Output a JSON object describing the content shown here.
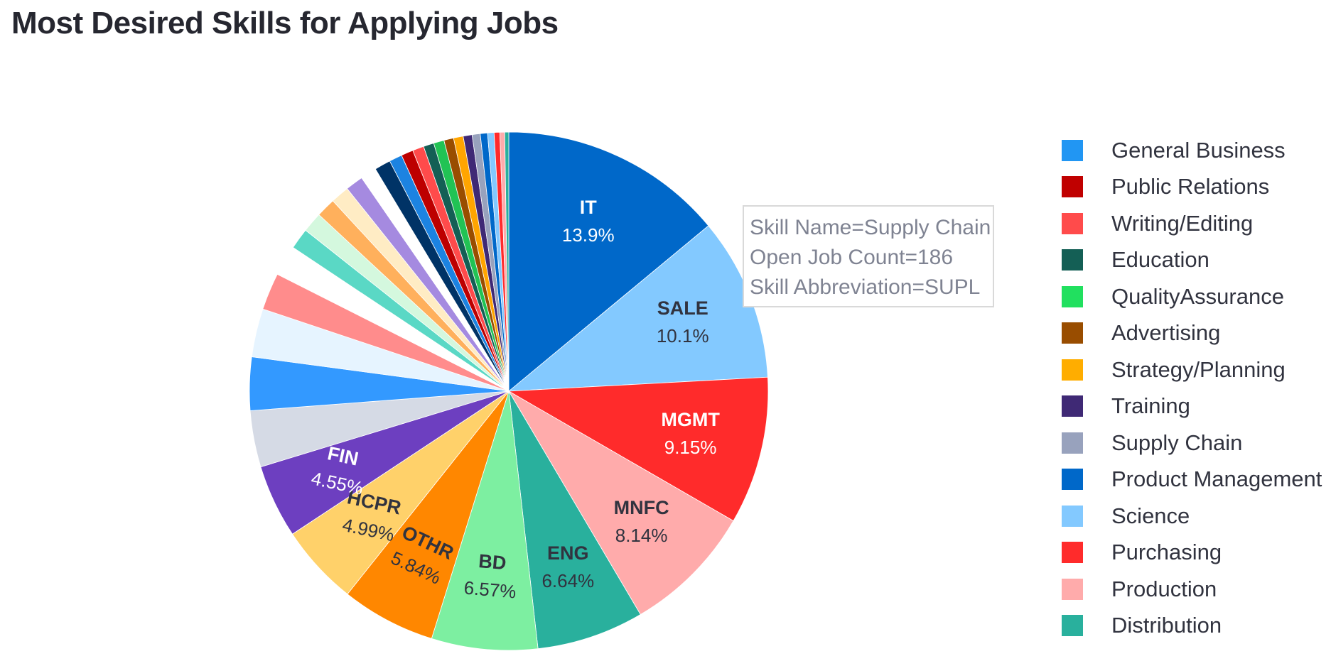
{
  "title": "Most Desired Skills for Applying Jobs",
  "chart_data": {
    "type": "pie",
    "title": "Most Desired Skills for Applying Jobs",
    "sort": "descending",
    "direction": "clockwise",
    "start": "top",
    "slices": [
      {
        "abbr": "IT",
        "pct": 13.9,
        "label": "13.9%",
        "color": "#0068c9",
        "text_color": "#ffffff"
      },
      {
        "abbr": "SALE",
        "pct": 10.1,
        "label": "10.1%",
        "color": "#83c9ff",
        "text_color": "#31333f"
      },
      {
        "abbr": "MGMT",
        "pct": 9.15,
        "label": "9.15%",
        "color": "#ff2b2b",
        "text_color": "#ffffff"
      },
      {
        "abbr": "MNFC",
        "pct": 8.14,
        "label": "8.14%",
        "color": "#ffabab",
        "text_color": "#31333f"
      },
      {
        "abbr": "ENG",
        "pct": 6.64,
        "label": "6.64%",
        "color": "#29b09d",
        "text_color": "#31333f"
      },
      {
        "abbr": "BD",
        "pct": 6.57,
        "label": "6.57%",
        "color": "#7defa1",
        "text_color": "#31333f"
      },
      {
        "abbr": "OTHR",
        "pct": 5.84,
        "label": "5.84%",
        "color": "#ff8700",
        "text_color": "#31333f"
      },
      {
        "abbr": "HCPR",
        "pct": 4.99,
        "label": "4.99%",
        "color": "#ffd16a",
        "text_color": "#31333f"
      },
      {
        "abbr": "FIN",
        "pct": 4.55,
        "label": "4.55%",
        "color": "#6d3fc0",
        "text_color": "#ffffff"
      },
      {
        "pct": 3.5,
        "color": "#d5dae5"
      },
      {
        "pct": 3.3,
        "color": "#3399ff"
      },
      {
        "pct": 3.0,
        "color": "#e6f4ff"
      },
      {
        "pct": 2.3,
        "color": "#ff8c8c"
      },
      {
        "pct": 1.9,
        "color": "#ffffff"
      },
      {
        "pct": 1.3,
        "color": "#5ad8c5"
      },
      {
        "pct": 1.25,
        "color": "#d4f8de"
      },
      {
        "pct": 1.2,
        "color": "#ffb05c"
      },
      {
        "pct": 1.15,
        "color": "#ffecc4"
      },
      {
        "pct": 1.1,
        "color": "#a58ae0"
      },
      {
        "pct": 1.0,
        "color": "#ffffff"
      },
      {
        "pct": 1.0,
        "color": "#003366"
      },
      {
        "pct": 0.8,
        "color": "#1c83e1"
      },
      {
        "pct": 0.75,
        "color": "#bd0000"
      },
      {
        "pct": 0.7,
        "color": "#ff4b4b"
      },
      {
        "pct": 0.65,
        "color": "#145f55"
      },
      {
        "pct": 0.65,
        "color": "#21c354"
      },
      {
        "pct": 0.6,
        "color": "#994d00"
      },
      {
        "pct": 0.6,
        "color": "#ffa500"
      },
      {
        "pct": 0.55,
        "color": "#3f2975"
      },
      {
        "pct": 0.5,
        "color": "#98a2bd"
      },
      {
        "pct": 0.45,
        "color": "#0068c9"
      },
      {
        "pct": 0.4,
        "color": "#83c9ff"
      },
      {
        "pct": 0.35,
        "color": "#ff2b2b"
      },
      {
        "pct": 0.3,
        "color": "#ffabab"
      },
      {
        "pct": 0.25,
        "color": "#29b09d"
      }
    ],
    "legend": [
      {
        "label": "General Business",
        "color": "#2196f3"
      },
      {
        "label": "Public Relations",
        "color": "#c00000"
      },
      {
        "label": "Writing/Editing",
        "color": "#ff4b4b"
      },
      {
        "label": "Education",
        "color": "#145f55"
      },
      {
        "label": "QualityAssurance",
        "color": "#21e05f"
      },
      {
        "label": "Advertising",
        "color": "#994d00"
      },
      {
        "label": "Strategy/Planning",
        "color": "#ffad00"
      },
      {
        "label": "Training",
        "color": "#3f2975"
      },
      {
        "label": "Supply Chain",
        "color": "#98a2bd"
      },
      {
        "label": "Product Management",
        "color": "#0068c9"
      },
      {
        "label": "Science",
        "color": "#83c9ff"
      },
      {
        "label": "Purchasing",
        "color": "#ff2b2b"
      },
      {
        "label": "Production",
        "color": "#ffabab"
      },
      {
        "label": "Distribution",
        "color": "#29b09d"
      }
    ],
    "legend_placement": "right",
    "tooltip": {
      "line1": "Skill Name=Supply Chain",
      "line2": "Open Job Count=186",
      "line3": "Skill Abbreviation=SUPL"
    }
  }
}
